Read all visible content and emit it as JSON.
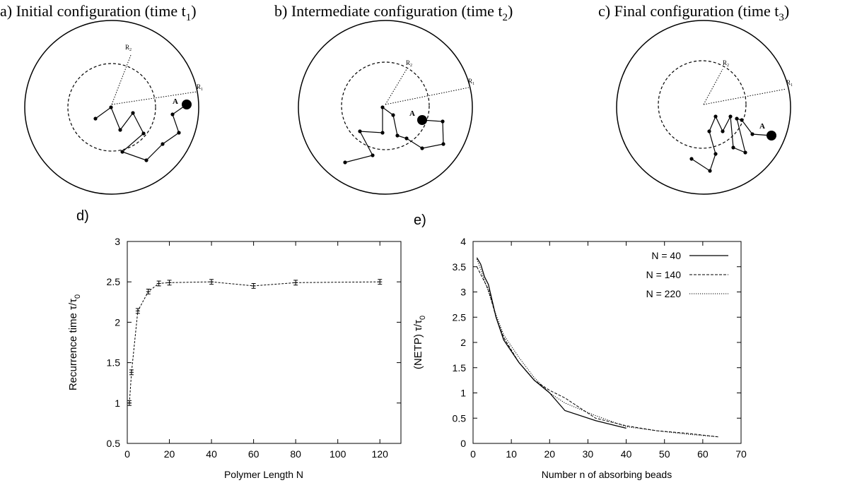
{
  "panels": {
    "a": {
      "title": "a) Initial configuration (time t",
      "sub": "1",
      "close": ")"
    },
    "b": {
      "title": "b) Intermediate configuration (time t",
      "sub": "2",
      "close": ")"
    },
    "c": {
      "title": "c) Final configuration (time t",
      "sub": "3",
      "close": ")"
    }
  },
  "diagram_labels": {
    "r1": "R",
    "r1_sub": "1",
    "r2": "R",
    "r2_sub": "2",
    "target": "A"
  },
  "chart_data": [
    {
      "panel_label": "d)",
      "type": "line",
      "xlabel": "Polymer Length N",
      "ylabel_main": "Recurrence time τ/τ",
      "ylabel_sub": "0",
      "xlim": [
        0,
        130
      ],
      "ylim": [
        0.5,
        3
      ],
      "xticks": [
        0,
        20,
        40,
        60,
        80,
        100,
        120
      ],
      "yticks": [
        0.5,
        1,
        1.5,
        2,
        2.5,
        3
      ],
      "ytick_labels": [
        "0.5",
        "1",
        "1.5",
        "2",
        "2.5",
        "3"
      ],
      "grid": false,
      "error_bars": true,
      "series": [
        {
          "x": [
            1,
            2,
            5,
            10,
            15,
            20,
            40,
            60,
            80,
            120
          ],
          "y": [
            1.0,
            1.38,
            2.14,
            2.38,
            2.48,
            2.49,
            2.5,
            2.45,
            2.49,
            2.5
          ],
          "err": [
            0.03,
            0.03,
            0.03,
            0.03,
            0.03,
            0.03,
            0.03,
            0.03,
            0.03,
            0.03
          ]
        }
      ]
    },
    {
      "panel_label": "e)",
      "type": "line",
      "xlabel": "Number n of absorbing beads",
      "ylabel_main": "(NETP) τ/τ",
      "ylabel_sub": "0",
      "xlim": [
        0,
        70
      ],
      "ylim": [
        0,
        4
      ],
      "xticks": [
        0,
        10,
        20,
        30,
        40,
        50,
        60,
        70
      ],
      "yticks": [
        0,
        0.5,
        1,
        1.5,
        2,
        2.5,
        3,
        3.5,
        4
      ],
      "ytick_labels": [
        "0",
        "0.5",
        "1",
        "1.5",
        "2",
        "2.5",
        "3",
        "3.5",
        "4"
      ],
      "grid": false,
      "legend_position": "top-right",
      "series": [
        {
          "name": "N = 40",
          "x": [
            1,
            2,
            3,
            4,
            6,
            8,
            12,
            16,
            20,
            24,
            32,
            40
          ],
          "y": [
            3.68,
            3.55,
            3.3,
            3.15,
            2.5,
            2.05,
            1.6,
            1.25,
            1.0,
            0.65,
            0.45,
            0.3
          ]
        },
        {
          "name": "N = 140",
          "x": [
            1,
            2,
            4,
            6,
            8,
            12,
            16,
            20,
            24,
            32,
            40,
            48,
            56,
            64
          ],
          "y": [
            3.5,
            3.35,
            3.05,
            2.5,
            2.1,
            1.6,
            1.25,
            1.05,
            0.9,
            0.5,
            0.35,
            0.25,
            0.2,
            0.13
          ]
        },
        {
          "name": "N = 220",
          "x": [
            1,
            2,
            4,
            6,
            8,
            12,
            16,
            20,
            24,
            32,
            40,
            48,
            56,
            64
          ],
          "y": [
            3.65,
            3.45,
            3.0,
            2.55,
            2.15,
            1.7,
            1.3,
            1.0,
            0.8,
            0.55,
            0.33,
            0.25,
            0.18,
            0.13
          ]
        }
      ]
    }
  ]
}
